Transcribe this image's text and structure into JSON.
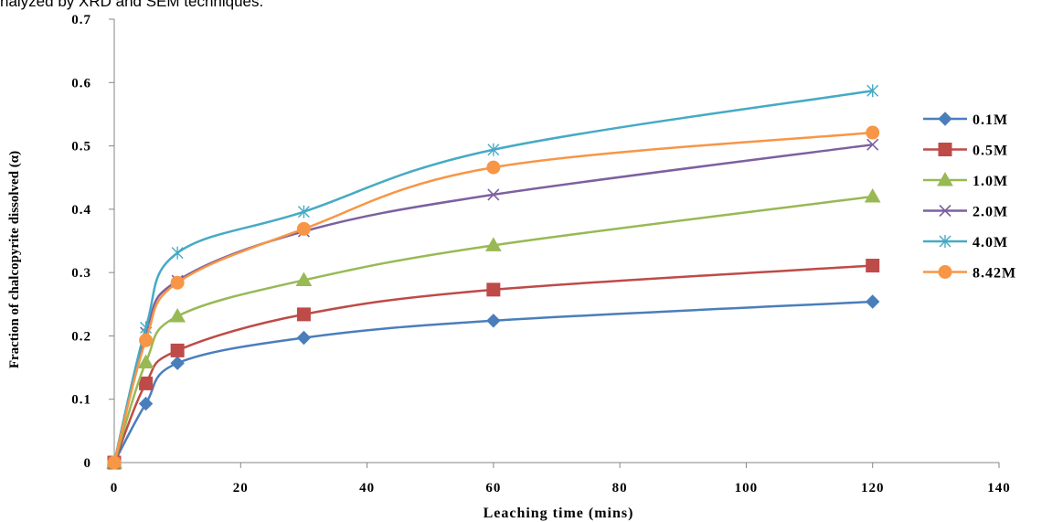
{
  "top_snippet": "nalyzed by XRD and SEM techniques.",
  "chart_data": {
    "type": "line",
    "title": "",
    "xlabel": "Leaching time (mins)",
    "ylabel": "Fraction of chalcopyrite dissolved (α)",
    "xlim": [
      0,
      140
    ],
    "ylim": [
      0,
      0.7
    ],
    "xticks": [
      0,
      20,
      40,
      60,
      80,
      100,
      120,
      140
    ],
    "yticks": [
      0,
      0.1,
      0.2,
      0.3,
      0.4,
      0.5,
      0.6,
      0.7
    ],
    "xtick_labels": [
      "0",
      "20",
      "40",
      "60",
      "80",
      "100",
      "120",
      "140"
    ],
    "ytick_labels": [
      "0",
      "0.1",
      "0.2",
      "0.3",
      "0.4",
      "0.5",
      "0.6",
      "0.7"
    ],
    "grid": false,
    "legend_position": "right",
    "x": [
      0,
      5,
      10,
      30,
      60,
      120
    ],
    "series": [
      {
        "name": "0.1M",
        "values": [
          0,
          0.093,
          0.157,
          0.197,
          0.224,
          0.254
        ],
        "color": "#4a7ebb",
        "marker": "diamond"
      },
      {
        "name": "0.5M",
        "values": [
          0,
          0.125,
          0.177,
          0.234,
          0.273,
          0.311
        ],
        "color": "#be4b48",
        "marker": "square"
      },
      {
        "name": "1.0M",
        "values": [
          0,
          0.158,
          0.231,
          0.288,
          0.343,
          0.42
        ],
        "color": "#98b954",
        "marker": "triangle"
      },
      {
        "name": "2.0M",
        "values": [
          0,
          0.205,
          0.287,
          0.365,
          0.423,
          0.502
        ],
        "color": "#7d60a0",
        "marker": "x"
      },
      {
        "name": "4.0M",
        "values": [
          0,
          0.213,
          0.331,
          0.396,
          0.494,
          0.587
        ],
        "color": "#46aac5",
        "marker": "star"
      },
      {
        "name": "8.42M",
        "values": [
          0,
          0.193,
          0.284,
          0.369,
          0.466,
          0.521
        ],
        "color": "#f79646",
        "marker": "circle"
      }
    ]
  }
}
